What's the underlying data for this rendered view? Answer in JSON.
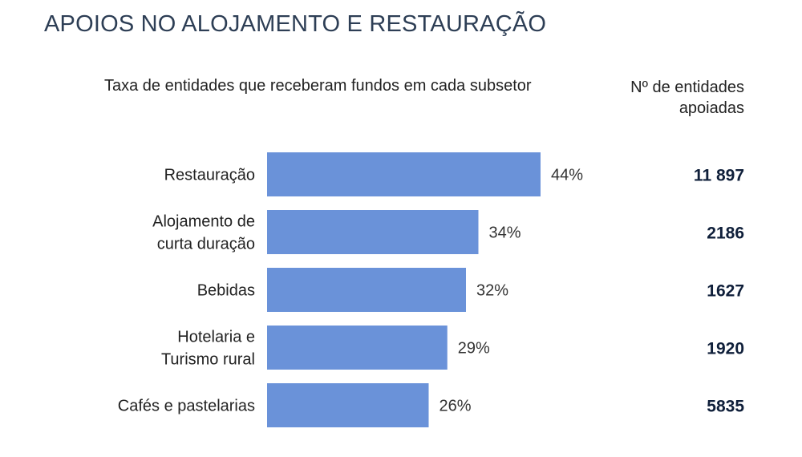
{
  "title": "APOIOS NO ALOJAMENTO E RESTAURAÇÃO",
  "subtitle": "Taxa de entidades que receberam fundos em cada subsetor",
  "count_header": "Nº de entidades apoiadas",
  "colors": {
    "bar": "#6a92d9",
    "title": "#2d3e55",
    "count": "#0f1f3a"
  },
  "chart_data": {
    "type": "bar",
    "orientation": "horizontal",
    "title": "Taxa de entidades que receberam fundos em cada subsetor",
    "categories": [
      [
        "Restauração"
      ],
      [
        "Alojamento de",
        "curta duração"
      ],
      [
        "Bebidas"
      ],
      [
        "Hotelaria e",
        "Turismo rural"
      ],
      [
        "Cafés e pastelarias"
      ]
    ],
    "values": [
      44,
      34,
      32,
      29,
      26
    ],
    "value_labels": [
      "44%",
      "34%",
      "32%",
      "29%",
      "26%"
    ],
    "counts": [
      "11 897",
      "2186",
      "1627",
      "1920",
      "5835"
    ],
    "unit": "%",
    "grid": false,
    "legend": "none"
  }
}
